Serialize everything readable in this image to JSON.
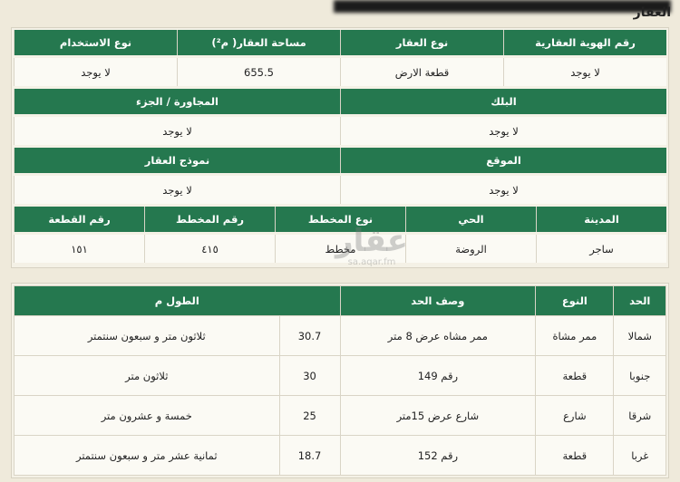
{
  "title": "العقار",
  "property": {
    "rows": [
      {
        "headers": [
          "رقم الهوية العقارية",
          "نوع العقار",
          "مساحة العقار( م²)",
          "نوع الاستخدام"
        ],
        "values": [
          "لا يوجد",
          "قطعة الارض",
          "655.5",
          "لا يوجد"
        ]
      },
      {
        "headers": [
          "البلك",
          "المجاورة / الجزء"
        ],
        "values": [
          "لا يوجد",
          "لا يوجد"
        ]
      },
      {
        "headers": [
          "الموقع",
          "نموذج العقار"
        ],
        "values": [
          "لا يوجد",
          "لا يوجد"
        ]
      },
      {
        "headers": [
          "المدينة",
          "الحي",
          "نوع المخطط",
          "رقم المخطط",
          "رقم القطعة"
        ],
        "values": [
          "ساجر",
          "الروضة",
          "مخطط",
          "٤١٥",
          "١٥١"
        ]
      }
    ]
  },
  "boundaries": {
    "headers": [
      "الحد",
      "النوع",
      "وصف الحد",
      "الطول م"
    ],
    "rows": [
      [
        "شمالا",
        "ممر مشاة",
        "ممر مشاه عرض 8 متر",
        "30.7",
        "ثلاثون متر و سبعون سنتمتر"
      ],
      [
        "جنوبا",
        "قطعة",
        "رقم 149",
        "30",
        "ثلاثون متر"
      ],
      [
        "شرقا",
        "شارع",
        "شارع عرض 15متر",
        "25",
        "خمسة و عشرون متر"
      ],
      [
        "غربا",
        "قطعة",
        "رقم 152",
        "18.7",
        "ثمانية عشر متر و سبعون سنتمتر"
      ]
    ]
  },
  "watermark": {
    "logo": "عقار",
    "url": "sa.aqar.fm"
  }
}
